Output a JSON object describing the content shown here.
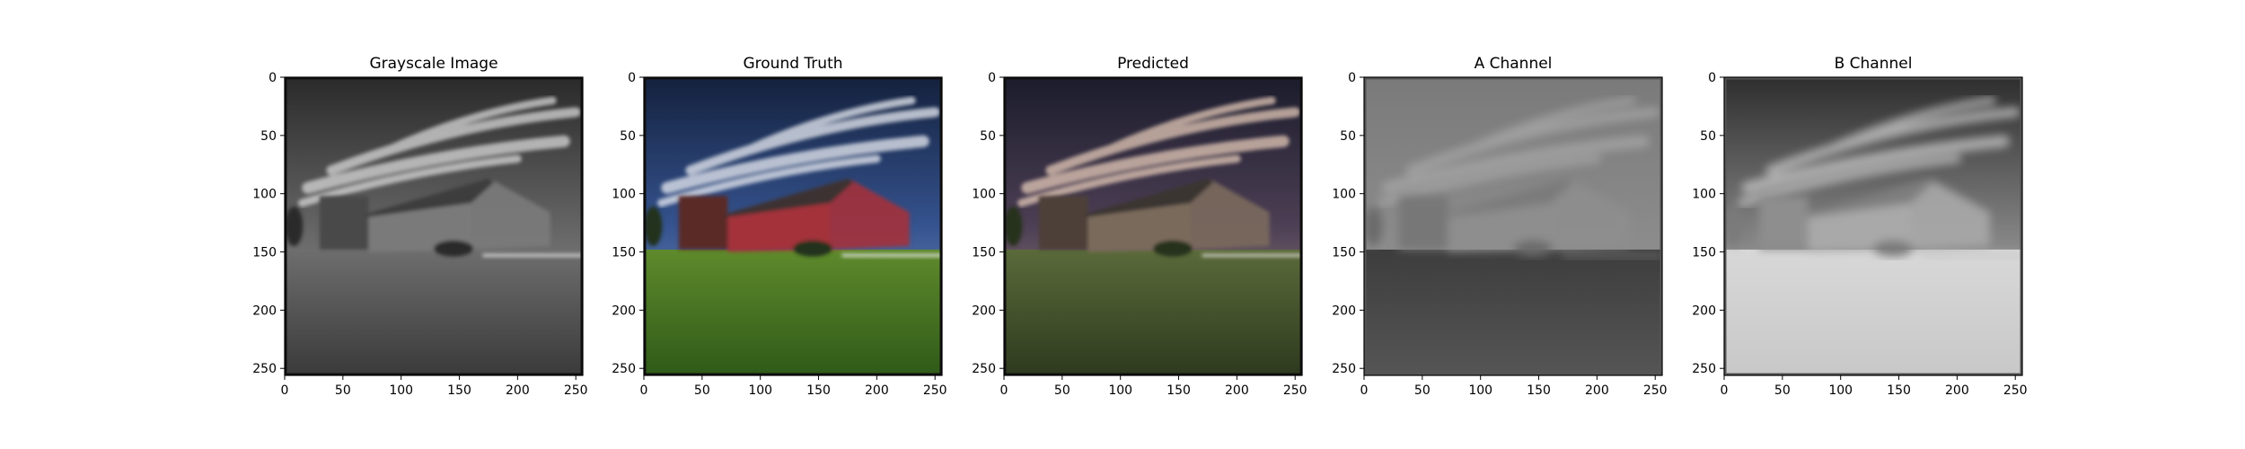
{
  "chart_data": [
    {
      "type": "image",
      "title": "Grayscale Image",
      "image_size": [
        256,
        256
      ],
      "xlim": [
        0,
        256
      ],
      "ylim": [
        256,
        0
      ],
      "xticks": [
        0,
        50,
        100,
        150,
        200,
        250
      ],
      "yticks": [
        0,
        50,
        100,
        150,
        200,
        250
      ],
      "colormap": "grayscale"
    },
    {
      "type": "image",
      "title": "Ground Truth",
      "image_size": [
        256,
        256
      ],
      "xlim": [
        0,
        256
      ],
      "ylim": [
        256,
        0
      ],
      "xticks": [
        0,
        50,
        100,
        150,
        200,
        250
      ],
      "yticks": [
        0,
        50,
        100,
        150,
        200,
        250
      ],
      "colormap": "color"
    },
    {
      "type": "image",
      "title": "Predicted",
      "image_size": [
        256,
        256
      ],
      "xlim": [
        0,
        256
      ],
      "ylim": [
        256,
        0
      ],
      "xticks": [
        0,
        50,
        100,
        150,
        200,
        250
      ],
      "yticks": [
        0,
        50,
        100,
        150,
        200,
        250
      ],
      "colormap": "color"
    },
    {
      "type": "image",
      "title": "A Channel",
      "image_size": [
        256,
        256
      ],
      "xlim": [
        0,
        256
      ],
      "ylim": [
        256,
        0
      ],
      "xticks": [
        0,
        50,
        100,
        150,
        200,
        250
      ],
      "yticks": [
        0,
        50,
        100,
        150,
        200,
        250
      ],
      "colormap": "grayscale"
    },
    {
      "type": "image",
      "title": "B Channel",
      "image_size": [
        256,
        256
      ],
      "xlim": [
        0,
        256
      ],
      "ylim": [
        256,
        0
      ],
      "xticks": [
        0,
        50,
        100,
        150,
        200,
        250
      ],
      "yticks": [
        0,
        50,
        100,
        150,
        200,
        250
      ],
      "colormap": "grayscale"
    }
  ]
}
